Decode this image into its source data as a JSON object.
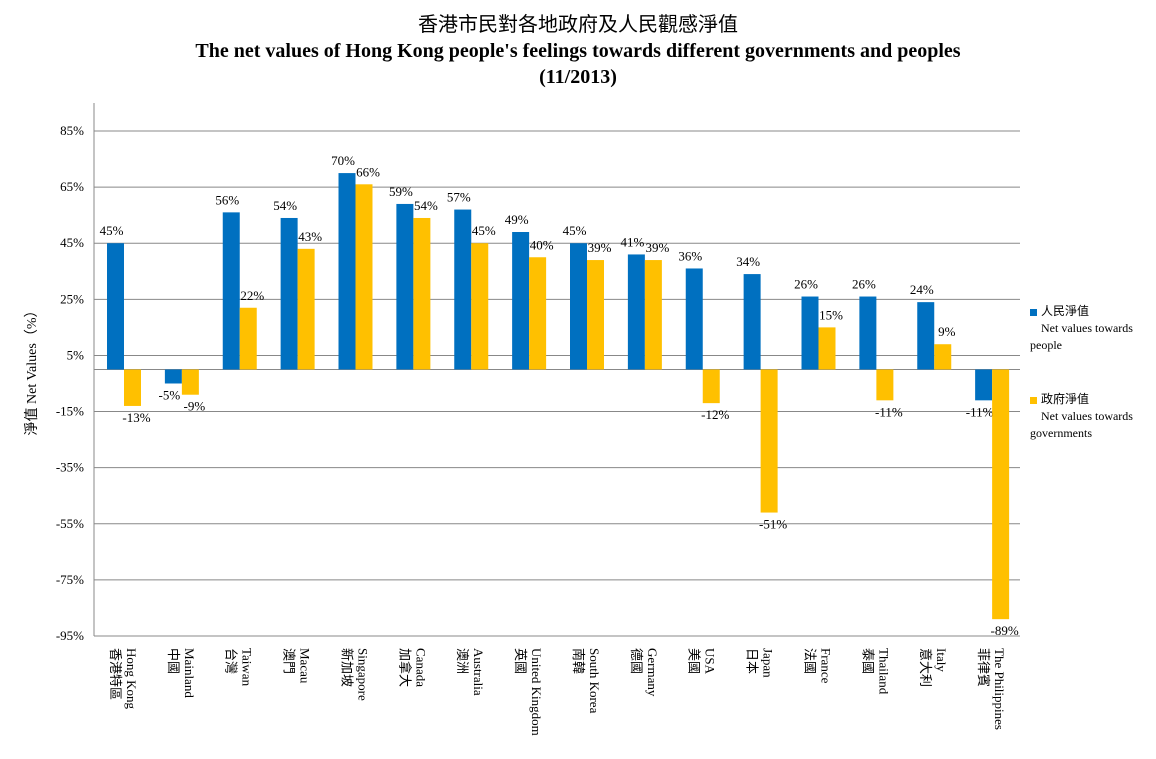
{
  "chart_data": {
    "type": "bar",
    "title_zh": "香港市民對各地政府及人民觀感淨值",
    "title": "The net values of Hong Kong people's feelings towards different governments and peoples",
    "subtitle": "(11/2013)",
    "ylabel": "淨值 Net Values（%）",
    "ylim": [
      -95,
      85
    ],
    "yticks": [
      "85%",
      "65%",
      "45%",
      "25%",
      "5%",
      "-15%",
      "-35%",
      "-55%",
      "-75%",
      "-95%"
    ],
    "grid": true,
    "legend_position": "right",
    "categories": [
      {
        "en": "Hong Kong",
        "zh": "香港特區"
      },
      {
        "en": "Mainland",
        "zh": "中國"
      },
      {
        "en": "Taiwan",
        "zh": "台灣"
      },
      {
        "en": "Macau",
        "zh": "澳門"
      },
      {
        "en": "Singapore",
        "zh": "新加坡"
      },
      {
        "en": "Canada",
        "zh": "加拿大"
      },
      {
        "en": "Australia",
        "zh": "澳洲"
      },
      {
        "en": "United Kingdom",
        "zh": "英國"
      },
      {
        "en": "South Korea",
        "zh": "南韓"
      },
      {
        "en": "Germany",
        "zh": "德國"
      },
      {
        "en": "USA",
        "zh": "美國"
      },
      {
        "en": "Japan",
        "zh": "日本"
      },
      {
        "en": "France",
        "zh": "法國"
      },
      {
        "en": "Thailand",
        "zh": "泰國"
      },
      {
        "en": "Italy",
        "zh": "意大利"
      },
      {
        "en": "The Philippines",
        "zh": "菲律賓"
      }
    ],
    "series": [
      {
        "name": "人民淨值",
        "name_en": "Net values towards people",
        "color": "#0070C0",
        "values": [
          45,
          -5,
          56,
          54,
          70,
          59,
          57,
          49,
          45,
          41,
          36,
          34,
          26,
          26,
          24,
          -11
        ]
      },
      {
        "name": "政府淨值",
        "name_en": "Net values towards governments",
        "color": "#FFC000",
        "values": [
          -13,
          -9,
          22,
          43,
          66,
          54,
          45,
          40,
          39,
          39,
          -12,
          -51,
          15,
          -11,
          9,
          -89
        ]
      }
    ]
  }
}
